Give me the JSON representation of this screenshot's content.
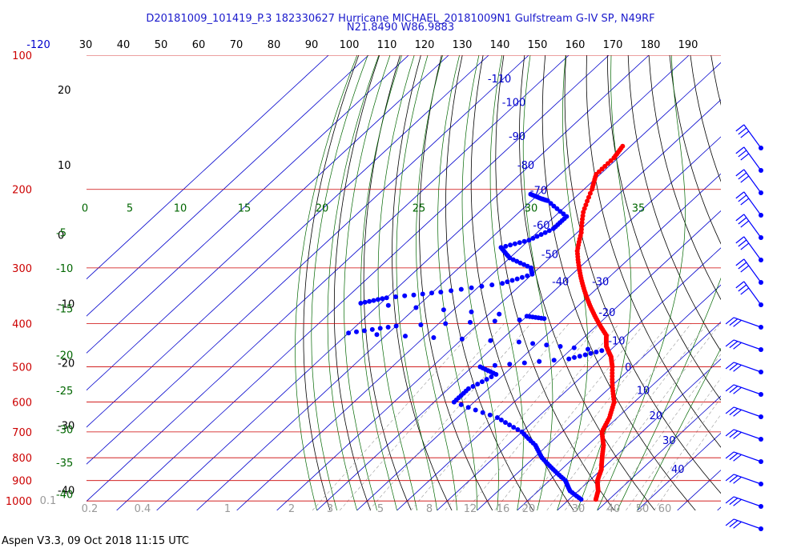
{
  "header": {
    "line1": "D20181009_101419_P.3 182330627 Hurricane MICHAEL_20181009N1 Gulfstream G-IV SP, N49RF",
    "line2": "N21.8490 W86.9883"
  },
  "footer": {
    "text": "Aspen V3.3, 09 Oct 2018  11:15 UTC"
  },
  "chart_data": {
    "type": "scatter",
    "title": "D20181009_101419_P.3 182330627 Hurricane MICHAEL_20181009N1 Gulfstream G-IV SP, N49RF",
    "subtitle": "N21.8490 W86.9883",
    "ylog": true,
    "pressure_levels": [
      {
        "label": "100",
        "p": 100
      },
      {
        "label": "200",
        "p": 200
      },
      {
        "label": "300",
        "p": 300
      },
      {
        "label": "400",
        "p": 400
      },
      {
        "label": "500",
        "p": 500
      },
      {
        "label": "600",
        "p": 600
      },
      {
        "label": "700",
        "p": 700
      },
      {
        "label": "800",
        "p": 800
      },
      {
        "label": "900",
        "p": 900
      },
      {
        "label": "1000",
        "p": 1000
      }
    ],
    "top_axis_labels": [
      "-120",
      "30",
      "40",
      "50",
      "60",
      "70",
      "80",
      "90",
      "100",
      "110",
      "120",
      "130",
      "140",
      "150",
      "160",
      "170",
      "180",
      "190"
    ],
    "temperature_isotherm_labels": [
      {
        "label": "-110",
        "p": 115
      },
      {
        "label": "-100",
        "p": 130
      },
      {
        "label": "-90",
        "p": 155
      },
      {
        "label": "-80",
        "p": 180
      },
      {
        "label": "-70",
        "p": 205
      },
      {
        "label": "-60",
        "p": 245
      },
      {
        "label": "-50",
        "p": 285
      },
      {
        "label": "-40",
        "p": 328
      },
      {
        "label": "-30",
        "p": 328
      },
      {
        "label": "-20",
        "p": 385
      },
      {
        "label": "-10",
        "p": 445
      },
      {
        "label": "0",
        "p": 510
      },
      {
        "label": "10",
        "p": 575
      },
      {
        "label": "20",
        "p": 655
      },
      {
        "label": "30",
        "p": 745
      },
      {
        "label": "40",
        "p": 865
      }
    ],
    "dry_adiabat_labels": [
      {
        "label": "20",
        "p": 122
      },
      {
        "label": "10",
        "p": 180
      },
      {
        "label": "0",
        "p": 258
      },
      {
        "label": "-10",
        "p": 368
      },
      {
        "label": "-20",
        "p": 500
      },
      {
        "label": "-30",
        "p": 690
      },
      {
        "label": "-40",
        "p": 965
      }
    ],
    "moist_adiabat_labels": [
      {
        "label": "0",
        "p": 195,
        "x": 106
      },
      {
        "label": "5",
        "p": 195,
        "x": 162
      },
      {
        "label": "10",
        "p": 195,
        "x": 225
      },
      {
        "label": "15",
        "p": 195,
        "x": 305
      },
      {
        "label": "20",
        "p": 195,
        "x": 402
      },
      {
        "label": "25",
        "p": 195,
        "x": 523
      },
      {
        "label": "30",
        "p": 195,
        "x": 663
      },
      {
        "label": "35",
        "p": 195,
        "x": 797
      }
    ],
    "moist_left_labels": [
      {
        "label": "-5",
        "p": 250
      },
      {
        "label": "-10",
        "p": 300
      },
      {
        "label": "-15",
        "p": 370
      },
      {
        "label": "-20",
        "p": 470
      },
      {
        "label": "-25",
        "p": 565
      },
      {
        "label": "-30",
        "p": 690
      },
      {
        "label": "-35",
        "p": 820
      },
      {
        "label": "-40",
        "p": 965
      }
    ],
    "mixing_ratio_labels": [
      "0.1",
      "0.2",
      "0.4",
      "1",
      "2",
      "3",
      "5",
      "8",
      "12",
      "16",
      "20",
      "30",
      "40",
      "50",
      "60"
    ],
    "temperature_profile": [
      {
        "p": 160,
        "t": -62
      },
      {
        "p": 170,
        "t": -61
      },
      {
        "p": 185,
        "t": -61
      },
      {
        "p": 200,
        "t": -58
      },
      {
        "p": 225,
        "t": -54
      },
      {
        "p": 250,
        "t": -49
      },
      {
        "p": 275,
        "t": -45
      },
      {
        "p": 300,
        "t": -40
      },
      {
        "p": 325,
        "t": -35
      },
      {
        "p": 350,
        "t": -30
      },
      {
        "p": 375,
        "t": -25
      },
      {
        "p": 400,
        "t": -20
      },
      {
        "p": 425,
        "t": -15
      },
      {
        "p": 450,
        "t": -12
      },
      {
        "p": 475,
        "t": -8
      },
      {
        "p": 500,
        "t": -5
      },
      {
        "p": 550,
        "t": 0
      },
      {
        "p": 600,
        "t": 5
      },
      {
        "p": 650,
        "t": 8
      },
      {
        "p": 700,
        "t": 10
      },
      {
        "p": 750,
        "t": 14
      },
      {
        "p": 800,
        "t": 17
      },
      {
        "p": 850,
        "t": 20
      },
      {
        "p": 900,
        "t": 22
      },
      {
        "p": 950,
        "t": 25
      },
      {
        "p": 1000,
        "t": 27
      }
    ],
    "dewpoint_profile": [
      {
        "p": 205,
        "t": -72
      },
      {
        "p": 210,
        "t": -68
      },
      {
        "p": 212,
        "t": -66
      },
      {
        "p": 230,
        "t": -57
      },
      {
        "p": 245,
        "t": -57
      },
      {
        "p": 260,
        "t": -60
      },
      {
        "p": 270,
        "t": -65
      },
      {
        "p": 285,
        "t": -60
      },
      {
        "p": 300,
        "t": -52
      },
      {
        "p": 310,
        "t": -50
      },
      {
        "p": 325,
        "t": -55
      },
      {
        "p": 340,
        "t": -68
      },
      {
        "p": 350,
        "t": -80
      },
      {
        "p": 360,
        "t": -85
      },
      {
        "p": 385,
        "t": -40
      },
      {
        "p": 390,
        "t": -35
      },
      {
        "p": 405,
        "t": -70
      },
      {
        "p": 420,
        "t": -80
      },
      {
        "p": 440,
        "t": -35
      },
      {
        "p": 460,
        "t": -12
      },
      {
        "p": 480,
        "t": -18
      },
      {
        "p": 500,
        "t": -38
      },
      {
        "p": 520,
        "t": -32
      },
      {
        "p": 560,
        "t": -35
      },
      {
        "p": 600,
        "t": -35
      },
      {
        "p": 650,
        "t": -20
      },
      {
        "p": 700,
        "t": -10
      },
      {
        "p": 750,
        "t": -3
      },
      {
        "p": 800,
        "t": 2
      },
      {
        "p": 850,
        "t": 8
      },
      {
        "p": 900,
        "t": 14
      },
      {
        "p": 950,
        "t": 18
      },
      {
        "p": 1000,
        "t": 24
      }
    ],
    "wind_barb_count": 18
  },
  "colors": {
    "pressure_lines": "#cc0000",
    "isotherms": "#0000cc",
    "dry_adiabats": "#000000",
    "moist_adiabats": "#006600",
    "mixing_ratio": "#999999",
    "temperature": "#ff0000",
    "dewpoint": "#0000ff",
    "wind_barbs": "#0000ff",
    "title": "#1a1acc"
  }
}
